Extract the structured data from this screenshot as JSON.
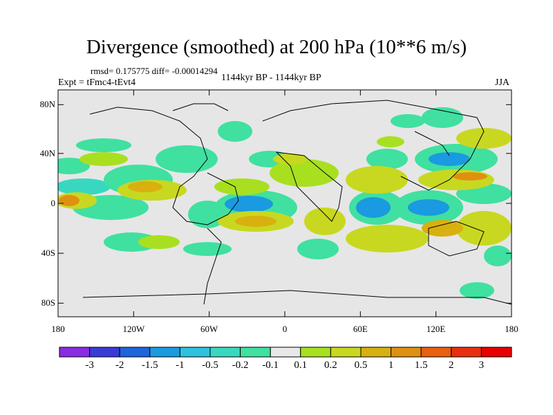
{
  "title": "Divergence (smoothed) at 200 hPa (10**6 m/s)",
  "stats_line": "rmsd= 0.175775 diff= -0.00014294",
  "experiment": "Expt = tFmc4-tEvt4",
  "period": "1144kyr BP - 1144kyr BP",
  "season": "JJA",
  "lat_ticks": [
    "80N",
    "40N",
    "0",
    "40S",
    "80S"
  ],
  "lon_ticks": [
    "180",
    "120W",
    "60W",
    "0",
    "60E",
    "120E",
    "180"
  ],
  "colorbar": {
    "colors": [
      "#8a2be2",
      "#3a3ad8",
      "#1e64dc",
      "#1a9ae0",
      "#2ec2e0",
      "#38d8c0",
      "#40e0a0",
      "#e8e8e8",
      "#a8e020",
      "#c8d820",
      "#d8b010",
      "#e09010",
      "#e86010",
      "#e83010",
      "#e80000"
    ],
    "labels": [
      "-3",
      "-2",
      "-1.5",
      "-1",
      "-0.5",
      "-0.2",
      "-0.1",
      "0.1",
      "0.2",
      "0.5",
      "1",
      "1.5",
      "2",
      "3"
    ]
  },
  "colors": {
    "ocean_bg": "#e6e6e6",
    "coast": "#000000"
  }
}
